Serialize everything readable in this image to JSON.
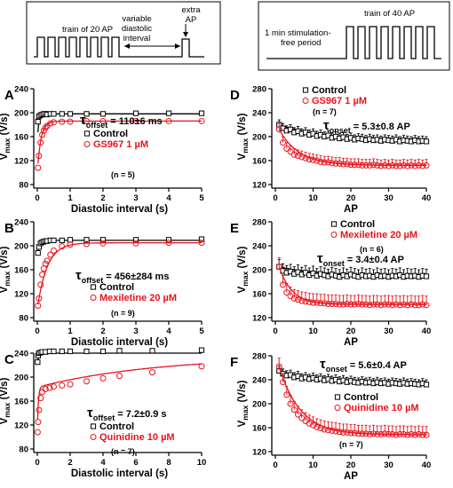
{
  "protocols": {
    "left": {
      "train_label": "train of 20 AP",
      "interval_label_1": "variable",
      "interval_label_2": "diastolic",
      "interval_label_3": "interval",
      "extra_label_1": "extra",
      "extra_label_2": "AP"
    },
    "right": {
      "period_label_1": "1 min stimulation-",
      "period_label_2": "free period",
      "train_label": "train of 40 AP"
    }
  },
  "colors": {
    "control": "#000000",
    "drug": "#e8141c"
  },
  "chart_data": [
    {
      "panel": "A",
      "type": "scatter",
      "xlabel": "Diastolic interval (s)",
      "ylabel_main": "V",
      "ylabel_sub": "max",
      "ylabel_unit": " (V/s)",
      "xlim": [
        0,
        5
      ],
      "ylim": [
        80,
        240
      ],
      "xticks": [
        0,
        1,
        2,
        3,
        4,
        5
      ],
      "yticks": [
        80,
        120,
        160,
        200,
        240
      ],
      "tau_main": "τ",
      "tau_sub": "offset",
      "tau_value": " = 110±6 ms",
      "n_label": "(n = 5)",
      "series": [
        {
          "name": "Control",
          "marker": "square",
          "x": [
            0.02,
            0.05,
            0.1,
            0.15,
            0.2,
            0.25,
            0.3,
            0.4,
            0.5,
            0.75,
            1.0,
            1.5,
            2.0,
            3.0,
            4.0,
            5.0
          ],
          "y": [
            185,
            194,
            196,
            197,
            198,
            198,
            197,
            198,
            198,
            198,
            198,
            198,
            198,
            199,
            199,
            199
          ],
          "fit": {
            "amp": 60,
            "tau": 0.03,
            "ss": 198
          }
        },
        {
          "name": "GS967 1 µM",
          "marker": "circle",
          "x": [
            0.02,
            0.05,
            0.1,
            0.15,
            0.2,
            0.25,
            0.3,
            0.4,
            0.5,
            0.75,
            1.0,
            1.5,
            2.0,
            3.0,
            4.0,
            5.0
          ],
          "y": [
            108,
            128,
            150,
            163,
            170,
            175,
            178,
            182,
            184,
            185,
            185,
            186,
            186,
            186,
            186,
            186
          ],
          "fit": {
            "amp": 85,
            "tau": 0.11,
            "ss": 186
          }
        }
      ]
    },
    {
      "panel": "B",
      "type": "scatter",
      "xlabel": "Diastolic interval (s)",
      "ylabel_main": "V",
      "ylabel_sub": "max",
      "ylabel_unit": " (V/s)",
      "xlim": [
        0,
        5
      ],
      "ylim": [
        80,
        240
      ],
      "xticks": [
        0,
        1,
        2,
        3,
        4,
        5
      ],
      "yticks": [
        80,
        120,
        160,
        200,
        240
      ],
      "tau_main": "τ",
      "tau_sub": "offset",
      "tau_value": " = 456±284 ms",
      "n_label": "(n = 9)",
      "series": [
        {
          "name": "Control",
          "marker": "square",
          "x": [
            0.02,
            0.05,
            0.1,
            0.15,
            0.2,
            0.25,
            0.3,
            0.4,
            0.5,
            0.75,
            1.0,
            1.5,
            2.0,
            3.0,
            4.0,
            5.0
          ],
          "y": [
            188,
            198,
            204,
            206,
            207,
            208,
            208,
            209,
            209,
            209,
            210,
            210,
            210,
            210,
            210,
            211
          ],
          "fit": {
            "amp": 30,
            "tau": 0.04,
            "ss": 209
          }
        },
        {
          "name": "Mexiletine 20 µM",
          "marker": "circle",
          "x": [
            0.02,
            0.05,
            0.1,
            0.15,
            0.2,
            0.25,
            0.3,
            0.4,
            0.5,
            0.75,
            1.0,
            1.5,
            2.0,
            3.0,
            4.0,
            5.0
          ],
          "y": [
            100,
            112,
            135,
            152,
            162,
            170,
            175,
            185,
            192,
            199,
            202,
            203,
            204,
            204,
            205,
            205
          ],
          "fit": {
            "amp": 110,
            "tau": 0.3,
            "ss": 205
          }
        }
      ]
    },
    {
      "panel": "C",
      "type": "scatter",
      "xlabel": "Diastolic interval (s)",
      "ylabel_main": "V",
      "ylabel_sub": "max",
      "ylabel_unit": " (V/s)",
      "xlim": [
        0,
        10
      ],
      "ylim": [
        80,
        240
      ],
      "xticks": [
        0,
        2,
        4,
        6,
        8,
        10
      ],
      "yticks": [
        80,
        120,
        160,
        200,
        240
      ],
      "tau_main": "τ",
      "tau_sub": "offset",
      "tau_value": " = 7.2±0.9 s",
      "n_label": "(n = 7)",
      "series": [
        {
          "name": "Control",
          "marker": "square",
          "x": [
            0.02,
            0.05,
            0.1,
            0.2,
            0.3,
            0.5,
            0.75,
            1.0,
            1.5,
            2.0,
            3.0,
            4.0,
            5.0,
            7.0,
            10.0
          ],
          "y": [
            225,
            236,
            240,
            241,
            242,
            242,
            243,
            243,
            243,
            243,
            243,
            243,
            244,
            244,
            245
          ],
          "fit": {
            "amp": 35,
            "tau": 0.04,
            "ss": 243
          }
        },
        {
          "name": "Quinidine 10 µM",
          "marker": "circle",
          "x": [
            0.02,
            0.05,
            0.1,
            0.2,
            0.3,
            0.5,
            0.75,
            1.0,
            1.5,
            2.0,
            3.0,
            4.0,
            5.0,
            7.0,
            10.0
          ],
          "y": [
            108,
            125,
            145,
            165,
            175,
            180,
            182,
            184,
            186,
            188,
            193,
            198,
            202,
            208,
            218
          ],
          "fit": {
            "fast_amp": 75,
            "fast_tau": 0.06,
            "base": 183,
            "slow_amp": 52,
            "slow_tau": 7.2
          }
        }
      ]
    },
    {
      "panel": "D",
      "type": "scatter",
      "xlabel": "AP",
      "ylabel_main": "V",
      "ylabel_sub": "max",
      "ylabel_unit": " (V/s)",
      "xlim": [
        0,
        40
      ],
      "ylim": [
        120,
        280
      ],
      "xticks": [
        0,
        10,
        20,
        30,
        40
      ],
      "yticks": [
        120,
        160,
        200,
        240,
        280
      ],
      "tau_main": "τ",
      "tau_sub": "onset",
      "tau_value": " = 5.3±0.8 AP",
      "n_label": "(n = 7)",
      "series": [
        {
          "name": "Control",
          "marker": "square",
          "start": 220,
          "end": 192,
          "tau": 12,
          "err": 8,
          "y": [
            220,
            214,
            210,
            212,
            207,
            209,
            205,
            207,
            203,
            205,
            201,
            203,
            200,
            202,
            198,
            200,
            197,
            199,
            196,
            198,
            195,
            197,
            196,
            194,
            196,
            194,
            195,
            193,
            195,
            194,
            193,
            195,
            192,
            194,
            193,
            192,
            194,
            192,
            193,
            192
          ]
        },
        {
          "name": "GS967 1 µM",
          "marker": "circle",
          "start": 212,
          "end": 152,
          "tau": 5.3,
          "err": 10,
          "y": [
            212,
            190,
            180,
            175,
            170,
            168,
            166,
            164,
            162,
            161,
            160,
            158,
            157,
            157,
            156,
            155,
            155,
            154,
            154,
            153,
            153,
            153,
            152,
            152,
            152,
            153,
            152,
            151,
            152,
            151,
            152,
            151,
            151,
            152,
            151,
            152,
            151,
            152,
            151,
            152
          ]
        }
      ]
    },
    {
      "panel": "E",
      "type": "scatter",
      "xlabel": "AP",
      "ylabel_main": "V",
      "ylabel_sub": "max",
      "ylabel_unit": " (V/s)",
      "xlim": [
        0,
        40
      ],
      "ylim": [
        120,
        280
      ],
      "xticks": [
        0,
        10,
        20,
        30,
        40
      ],
      "yticks": [
        120,
        160,
        200,
        240,
        280
      ],
      "tau_main": "τ",
      "tau_sub": "onset",
      "tau_value": " = 3.4±0.4 AP",
      "n_label": "(n = 6)",
      "series": [
        {
          "name": "Control",
          "marker": "square",
          "start": 205,
          "end": 190,
          "tau": 10,
          "err": 12,
          "y": [
            205,
            198,
            195,
            197,
            193,
            196,
            192,
            195,
            191,
            194,
            190,
            193,
            191,
            189,
            192,
            190,
            188,
            191,
            189,
            192,
            190,
            188,
            191,
            189,
            190,
            188,
            191,
            189,
            190,
            188,
            190,
            189,
            191,
            188,
            190,
            189,
            190,
            188,
            190,
            189
          ]
        },
        {
          "name": "Mexiletine 20 µM",
          "marker": "circle",
          "start": 205,
          "end": 142,
          "tau": 3.4,
          "err": 15,
          "y": [
            205,
            175,
            162,
            156,
            152,
            150,
            148,
            147,
            146,
            145,
            145,
            144,
            144,
            143,
            143,
            143,
            142,
            142,
            143,
            142,
            142,
            143,
            142,
            142,
            141,
            142,
            142,
            141,
            142,
            142,
            141,
            142,
            141,
            142,
            141,
            142,
            141,
            141,
            142,
            141
          ]
        }
      ]
    },
    {
      "panel": "F",
      "type": "scatter",
      "xlabel": "AP",
      "ylabel_main": "V",
      "ylabel_sub": "max",
      "ylabel_unit": " (V/s)",
      "xlim": [
        0,
        40
      ],
      "ylim": [
        120,
        280
      ],
      "xticks": [
        0,
        10,
        20,
        30,
        40
      ],
      "yticks": [
        120,
        160,
        200,
        240,
        280
      ],
      "tau_main": "τ",
      "tau_sub": "onset",
      "tau_value": " = 5.6±0.4 AP",
      "n_label": "(n = 7)",
      "series": [
        {
          "name": "Control",
          "marker": "square",
          "start": 255,
          "end": 232,
          "tau": 10,
          "err": 8,
          "y": [
            255,
            250,
            247,
            248,
            244,
            246,
            242,
            244,
            241,
            243,
            240,
            242,
            239,
            241,
            238,
            240,
            237,
            239,
            236,
            238,
            236,
            235,
            237,
            235,
            236,
            234,
            236,
            234,
            235,
            233,
            235,
            234,
            233,
            235,
            233,
            234,
            233,
            232,
            234,
            232
          ]
        },
        {
          "name": "Quinidine 10 µM",
          "marker": "circle",
          "start": 262,
          "end": 148,
          "tau": 5.6,
          "err": 14,
          "y": [
            262,
            236,
            215,
            200,
            190,
            182,
            176,
            171,
            167,
            164,
            161,
            159,
            157,
            156,
            155,
            154,
            153,
            152,
            152,
            151,
            151,
            150,
            150,
            150,
            149,
            150,
            149,
            149,
            150,
            149,
            149,
            148,
            149,
            149,
            148,
            149,
            148,
            149,
            148,
            148
          ]
        }
      ]
    }
  ]
}
